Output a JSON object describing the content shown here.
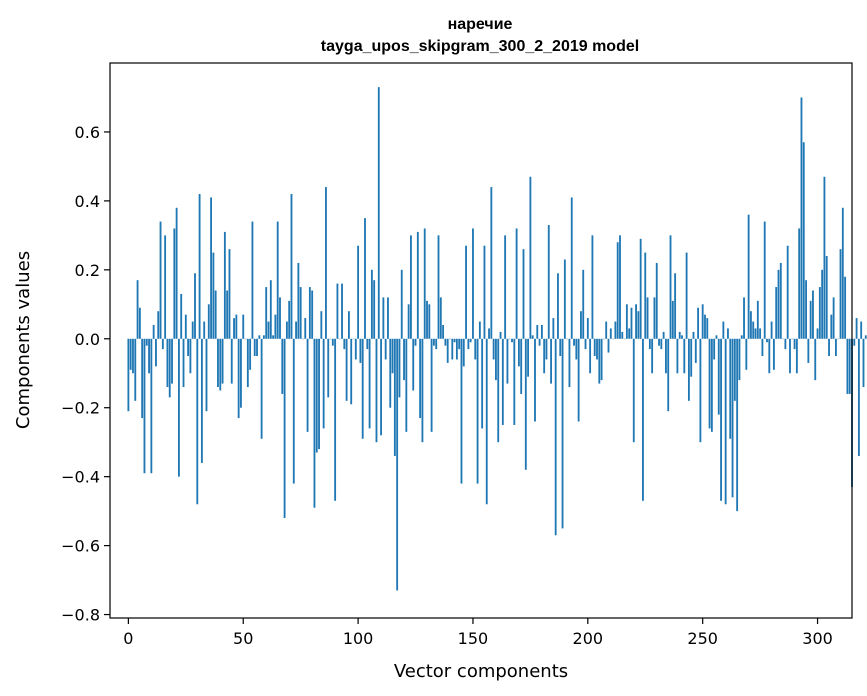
{
  "chart_data": {
    "type": "bar",
    "title": "наречие",
    "subtitle": "tayga_upos_skipgram_300_2_2019 model",
    "xlabel": "Vector components",
    "ylabel": "Components values",
    "xlim": [
      -8,
      315
    ],
    "ylim": [
      -0.81,
      0.8
    ],
    "xticks": [
      0,
      50,
      100,
      150,
      200,
      250,
      300
    ],
    "yticks": [
      -0.8,
      -0.6,
      -0.4,
      -0.2,
      0.0,
      0.2,
      0.4,
      0.6
    ],
    "ytick_labels": [
      "−0.8",
      "−0.6",
      "−0.4",
      "−0.2",
      "0.0",
      "0.2",
      "0.4",
      "0.6"
    ],
    "grid": false,
    "bar_color": "#1f77b4",
    "values": [
      -0.21,
      -0.09,
      -0.1,
      -0.18,
      0.17,
      0.09,
      -0.23,
      -0.39,
      -0.02,
      -0.1,
      -0.39,
      0.04,
      -0.08,
      0.08,
      0.34,
      -0.03,
      0.3,
      -0.14,
      -0.17,
      -0.13,
      0.32,
      0.38,
      -0.4,
      0.13,
      -0.14,
      0.07,
      -0.05,
      -0.1,
      0.05,
      0.19,
      -0.48,
      0.42,
      -0.36,
      0.05,
      -0.21,
      0.1,
      0.41,
      0.25,
      0.14,
      -0.14,
      -0.15,
      -0.13,
      0.31,
      0.14,
      0.26,
      -0.13,
      0.06,
      0.07,
      -0.23,
      -0.2,
      0.07,
      0.0,
      -0.14,
      -0.09,
      0.34,
      -0.05,
      -0.05,
      0.01,
      -0.29,
      0.01,
      0.15,
      0.05,
      0.17,
      0.01,
      0.07,
      0.34,
      0.12,
      -0.16,
      -0.52,
      0.05,
      0.11,
      0.42,
      -0.42,
      0.05,
      0.22,
      0.15,
      0.0,
      0.06,
      -0.27,
      0.15,
      0.14,
      -0.49,
      -0.33,
      -0.32,
      0.08,
      -0.26,
      0.44,
      -0.17,
      0.0,
      -0.02,
      -0.47,
      0.16,
      0.0,
      0.16,
      -0.03,
      -0.18,
      0.08,
      -0.19,
      0.0,
      -0.06,
      0.27,
      -0.07,
      -0.29,
      0.35,
      -0.03,
      -0.26,
      0.2,
      0.17,
      -0.3,
      0.73,
      -0.28,
      0.12,
      -0.06,
      0.12,
      -0.2,
      -0.1,
      -0.34,
      -0.73,
      -0.17,
      0.2,
      -0.12,
      -0.27,
      0.1,
      0.3,
      -0.15,
      -0.02,
      0.31,
      -0.23,
      -0.3,
      0.32,
      0.11,
      0.1,
      -0.27,
      -0.02,
      -0.03,
      0.3,
      0.12,
      0.04,
      -0.02,
      -0.07,
      0.0,
      -0.06,
      -0.01,
      -0.06,
      -0.03,
      -0.42,
      -0.08,
      0.27,
      -0.03,
      -0.01,
      0.32,
      -0.06,
      -0.42,
      0.05,
      -0.26,
      0.27,
      -0.48,
      0.03,
      0.44,
      -0.06,
      -0.12,
      -0.3,
      0.02,
      -0.25,
      0.3,
      -0.13,
      0.0,
      -0.01,
      -0.25,
      0.32,
      -0.08,
      -0.16,
      0.26,
      -0.38,
      -0.11,
      0.47,
      0.01,
      -0.24,
      0.04,
      -0.02,
      0.04,
      -0.1,
      -0.06,
      0.33,
      -0.13,
      0.06,
      -0.57,
      0.19,
      -0.05,
      -0.55,
      0.23,
      0.0,
      -0.14,
      0.41,
      -0.02,
      -0.06,
      -0.24,
      0.08,
      0.2,
      -0.03,
      0.06,
      -0.1,
      0.3,
      -0.05,
      -0.06,
      -0.13,
      -0.12,
      0.0,
      0.05,
      -0.04,
      0.03,
      0.0,
      0.05,
      0.28,
      0.3,
      0.02,
      0.0,
      0.1,
      0.03,
      0.09,
      -0.3,
      0.1,
      0.08,
      0.29,
      -0.47,
      0.25,
      0.12,
      -0.03,
      -0.1,
      0.12,
      0.22,
      -0.02,
      -0.03,
      0.02,
      -0.1,
      -0.21,
      0.3,
      0.11,
      0.19,
      -0.1,
      0.02,
      0.01,
      -0.1,
      0.25,
      -0.18,
      -0.11,
      0.02,
      -0.07,
      0.09,
      -0.3,
      0.1,
      0.07,
      0.06,
      -0.26,
      -0.27,
      -0.06,
      0.01,
      -0.22,
      -0.47,
      0.05,
      -0.48,
      0.03,
      -0.29,
      -0.46,
      -0.18,
      -0.5,
      -0.12,
      0.01,
      0.12,
      -0.09,
      0.36,
      0.08,
      0.05,
      0.03,
      0.11,
      0.03,
      -0.05,
      0.34,
      -0.01,
      -0.1,
      0.05,
      -0.09,
      0.15,
      0.2,
      0.22,
      0.0,
      -0.03,
      0.27,
      -0.1,
      0.0,
      -0.03,
      -0.1,
      0.32,
      0.7,
      0.57,
      0.17,
      -0.07,
      0.11,
      0.14,
      -0.12,
      0.03,
      0.15,
      0.2,
      0.47,
      0.24,
      -0.05,
      0.07,
      0.12,
      -0.05,
      0.0,
      0.26,
      0.38,
      0.18,
      -0.16,
      -0.16,
      -0.43,
      -0.02,
      0.06,
      -0.34,
      0.05,
      -0.14,
      0.01,
      0.12,
      -0.17,
      -0.36,
      0.0
    ]
  }
}
